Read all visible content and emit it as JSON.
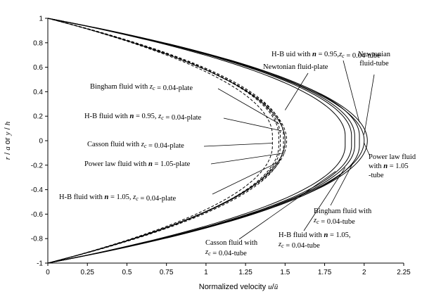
{
  "chart_data": {
    "type": "line",
    "title": "",
    "xlabel": "Normalized velocity u/ū",
    "ylabel": "r / a or y / h",
    "xlim": [
      0,
      2.25
    ],
    "ylim": [
      -1,
      1
    ],
    "grid": false,
    "x_ticks": [
      "0",
      "0.25",
      "0.5",
      "0.75",
      "1",
      "1.25",
      "1.5",
      "1.75",
      "2",
      "2.25"
    ],
    "y_ticks": [
      "1",
      "0.8",
      "0.6",
      "0.4",
      "0.2",
      "0",
      "-0.2",
      "-0.4",
      "-0.6",
      "-0.8",
      "-1"
    ],
    "series": [
      {
        "name": "Newtonian fluid-tube",
        "style": "solid",
        "max_velocity": 2.0,
        "flat_core_halfwidth": 0.0
      },
      {
        "name": "Power law fluid with n = 1.05-tube",
        "style": "solid",
        "max_velocity": 2.02,
        "flat_core_halfwidth": 0.0
      },
      {
        "name": "H-B fluid with n = 0.95, zc = 0.04-tube",
        "style": "solid",
        "max_velocity": 1.97,
        "flat_core_halfwidth": 0.04
      },
      {
        "name": "Bingham fluid with zc = 0.04-tube",
        "style": "solid",
        "max_velocity": 1.94,
        "flat_core_halfwidth": 0.04
      },
      {
        "name": "H-B fluid with n = 1.05, zc = 0.04-tube",
        "style": "solid",
        "max_velocity": 1.92,
        "flat_core_halfwidth": 0.04
      },
      {
        "name": "Casson fluid with zc = 0.04-tube",
        "style": "solid",
        "max_velocity": 1.88,
        "flat_core_halfwidth": 0.04
      },
      {
        "name": "Newtonian fluid-plate",
        "style": "solid",
        "max_velocity": 1.5,
        "flat_core_halfwidth": 0.0
      },
      {
        "name": "Power law fluid with n = 1.05-plate",
        "style": "dashed",
        "max_velocity": 1.51,
        "flat_core_halfwidth": 0.0
      },
      {
        "name": "H-B fluid with n = 0.95, zc = 0.04-plate",
        "style": "dashed",
        "max_velocity": 1.49,
        "flat_core_halfwidth": 0.04
      },
      {
        "name": "Bingham fluid with zc = 0.04-plate",
        "style": "dashed",
        "max_velocity": 1.47,
        "flat_core_halfwidth": 0.04
      },
      {
        "name": "H-B fluid with n = 1.05, zc = 0.04-plate",
        "style": "dashed",
        "max_velocity": 1.46,
        "flat_core_halfwidth": 0.04
      },
      {
        "name": "Casson fluid with zc = 0.04-plate",
        "style": "dashed",
        "max_velocity": 1.42,
        "flat_core_halfwidth": 0.04
      }
    ],
    "annotations": [
      {
        "id": "hb095-tube",
        "lines": [
          "H-B uid with n = 0.95,zc = 0.04-tube"
        ],
        "target": [
          1.97,
          0.15
        ]
      },
      {
        "id": "newt-plate",
        "lines": [
          "Newtonian fluid-plate"
        ],
        "target": [
          1.5,
          0.25
        ]
      },
      {
        "id": "newt-tube",
        "lines": [
          "Newtonian",
          "fluid-tube"
        ],
        "target": [
          2.0,
          0.05
        ]
      },
      {
        "id": "bingham-plate",
        "lines": [
          "Bingham fluid with zc = 0.04-plate"
        ],
        "target": [
          1.46,
          0.14
        ]
      },
      {
        "id": "hb095-plate",
        "lines": [
          "H-B fluid with n = 0.95, zc = 0.04-plate"
        ],
        "target": [
          1.48,
          0.08
        ]
      },
      {
        "id": "casson-plate",
        "lines": [
          "Casson fluid with zc = 0.04-plate"
        ],
        "target": [
          1.42,
          -0.02
        ]
      },
      {
        "id": "power-plate",
        "lines": [
          "Power law fluid with n = 1.05-plate"
        ],
        "target": [
          1.5,
          -0.1
        ]
      },
      {
        "id": "hb105-plate",
        "lines": [
          "H-B fluid with n = 1.05, zc = 0.04-plate"
        ],
        "target": [
          1.45,
          -0.18
        ]
      },
      {
        "id": "power-tube",
        "lines": [
          "Power law fluid",
          "with n = 1.05",
          "-tube"
        ],
        "target": [
          2.0,
          -0.02
        ]
      },
      {
        "id": "bingham-tube",
        "lines": [
          "Bingham fluid with",
          "zc = 0.04-tube"
        ],
        "target": [
          1.93,
          -0.18
        ]
      },
      {
        "id": "hb105-tube",
        "lines": [
          "H-B fluid with n = 1.05,",
          "zc = 0.04-tube"
        ],
        "target": [
          1.88,
          -0.22
        ]
      },
      {
        "id": "casson-tube",
        "lines": [
          "Casson fluid with",
          "zc = 0.04-tube"
        ],
        "target": [
          1.82,
          -0.25
        ]
      }
    ]
  }
}
